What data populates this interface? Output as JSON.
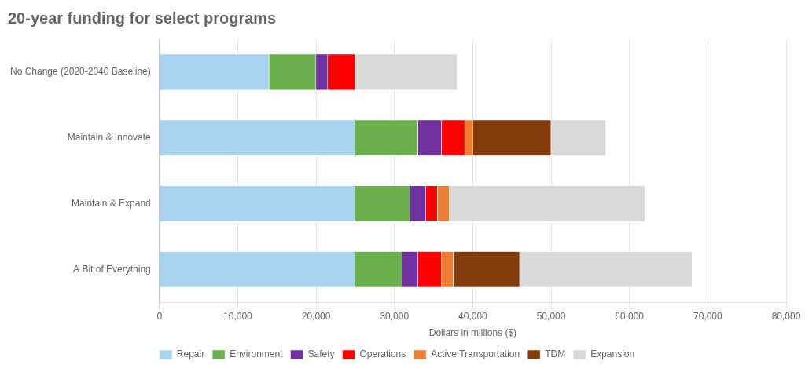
{
  "chart_data": {
    "type": "bar",
    "orientation": "horizontal",
    "stacked": true,
    "title": "20-year funding for select programs",
    "x_label": "Dollars in millions ($)",
    "categories": [
      "No Change (2020-2040 Baseline)",
      "Maintain & Innovate",
      "Maintain & Expand",
      "A Bit of Everything"
    ],
    "series": [
      {
        "name": "Repair",
        "color": "#a8d4f0",
        "values": [
          14000,
          25000,
          25000,
          25000
        ]
      },
      {
        "name": "Environment",
        "color": "#6ab04c",
        "values": [
          6000,
          8000,
          7000,
          6000
        ]
      },
      {
        "name": "Safety",
        "color": "#7030a0",
        "values": [
          1500,
          3000,
          2000,
          2000
        ]
      },
      {
        "name": "Operations",
        "color": "#ff0000",
        "values": [
          3500,
          3000,
          1500,
          3000
        ]
      },
      {
        "name": "Active Transportation",
        "color": "#ed7d31",
        "values": [
          0,
          1000,
          1500,
          1500
        ]
      },
      {
        "name": "TDM",
        "color": "#843c0c",
        "values": [
          0,
          10000,
          0,
          8500
        ]
      },
      {
        "name": "Expansion",
        "color": "#d9d9d9",
        "values": [
          13000,
          7000,
          25000,
          22000
        ]
      }
    ],
    "xlim": [
      0,
      80000
    ],
    "xticks": [
      0,
      {
        "value": 10000,
        "label": "10,000"
      },
      {
        "value": 20000,
        "label": "20,000"
      },
      {
        "value": 30000,
        "label": "30,000"
      },
      {
        "value": 40000,
        "label": "40,000"
      },
      {
        "value": 50000,
        "label": "50,000"
      },
      {
        "value": 60000,
        "label": "60,000"
      },
      {
        "value": 70000,
        "label": "70,000"
      },
      {
        "value": 80000,
        "label": "80,000"
      }
    ],
    "grid": true,
    "legend": "bottom"
  }
}
